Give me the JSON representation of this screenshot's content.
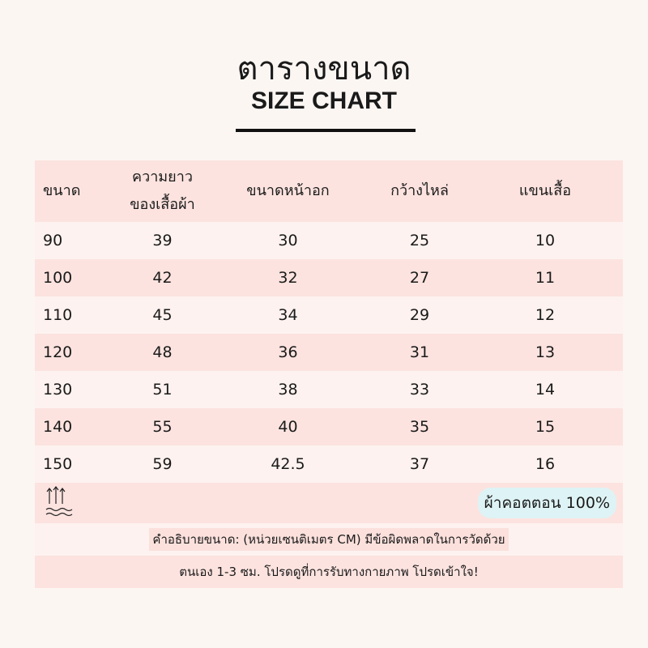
{
  "title_th": "ตารางขนาด",
  "title_en": "SIZE CHART",
  "headers": [
    "ขนาด",
    "ความยาว\nของเสื้อผ้า",
    "ขนาดหน้าอก",
    "กว้างไหล่",
    "แขนเสื้อ"
  ],
  "header_line1": "ความยาว",
  "header_line2": "ของเสื้อผ้า",
  "rows": [
    [
      "90",
      "39",
      "30",
      "25",
      "10"
    ],
    [
      "100",
      "42",
      "32",
      "27",
      "11"
    ],
    [
      "110",
      "45",
      "34",
      "29",
      "12"
    ],
    [
      "120",
      "48",
      "36",
      "31",
      "13"
    ],
    [
      "130",
      "51",
      "38",
      "33",
      "14"
    ],
    [
      "140",
      "55",
      "40",
      "35",
      "15"
    ],
    [
      "150",
      "59",
      "42.5",
      "37",
      "16"
    ]
  ],
  "fabric_badge": "ผ้าคอตตอน 100%",
  "icon": "heat-wave-arrows-icon",
  "note_line1": "คำอธิบายขนาด: (หน่วยเซนติเมตร CM) มีข้อผิดพลาดในการวัดด้วย",
  "note_line2": "ตนเอง 1-3 ซม. โปรดดูที่การรับทางกายภาพ โปรดเข้าใจ!"
}
